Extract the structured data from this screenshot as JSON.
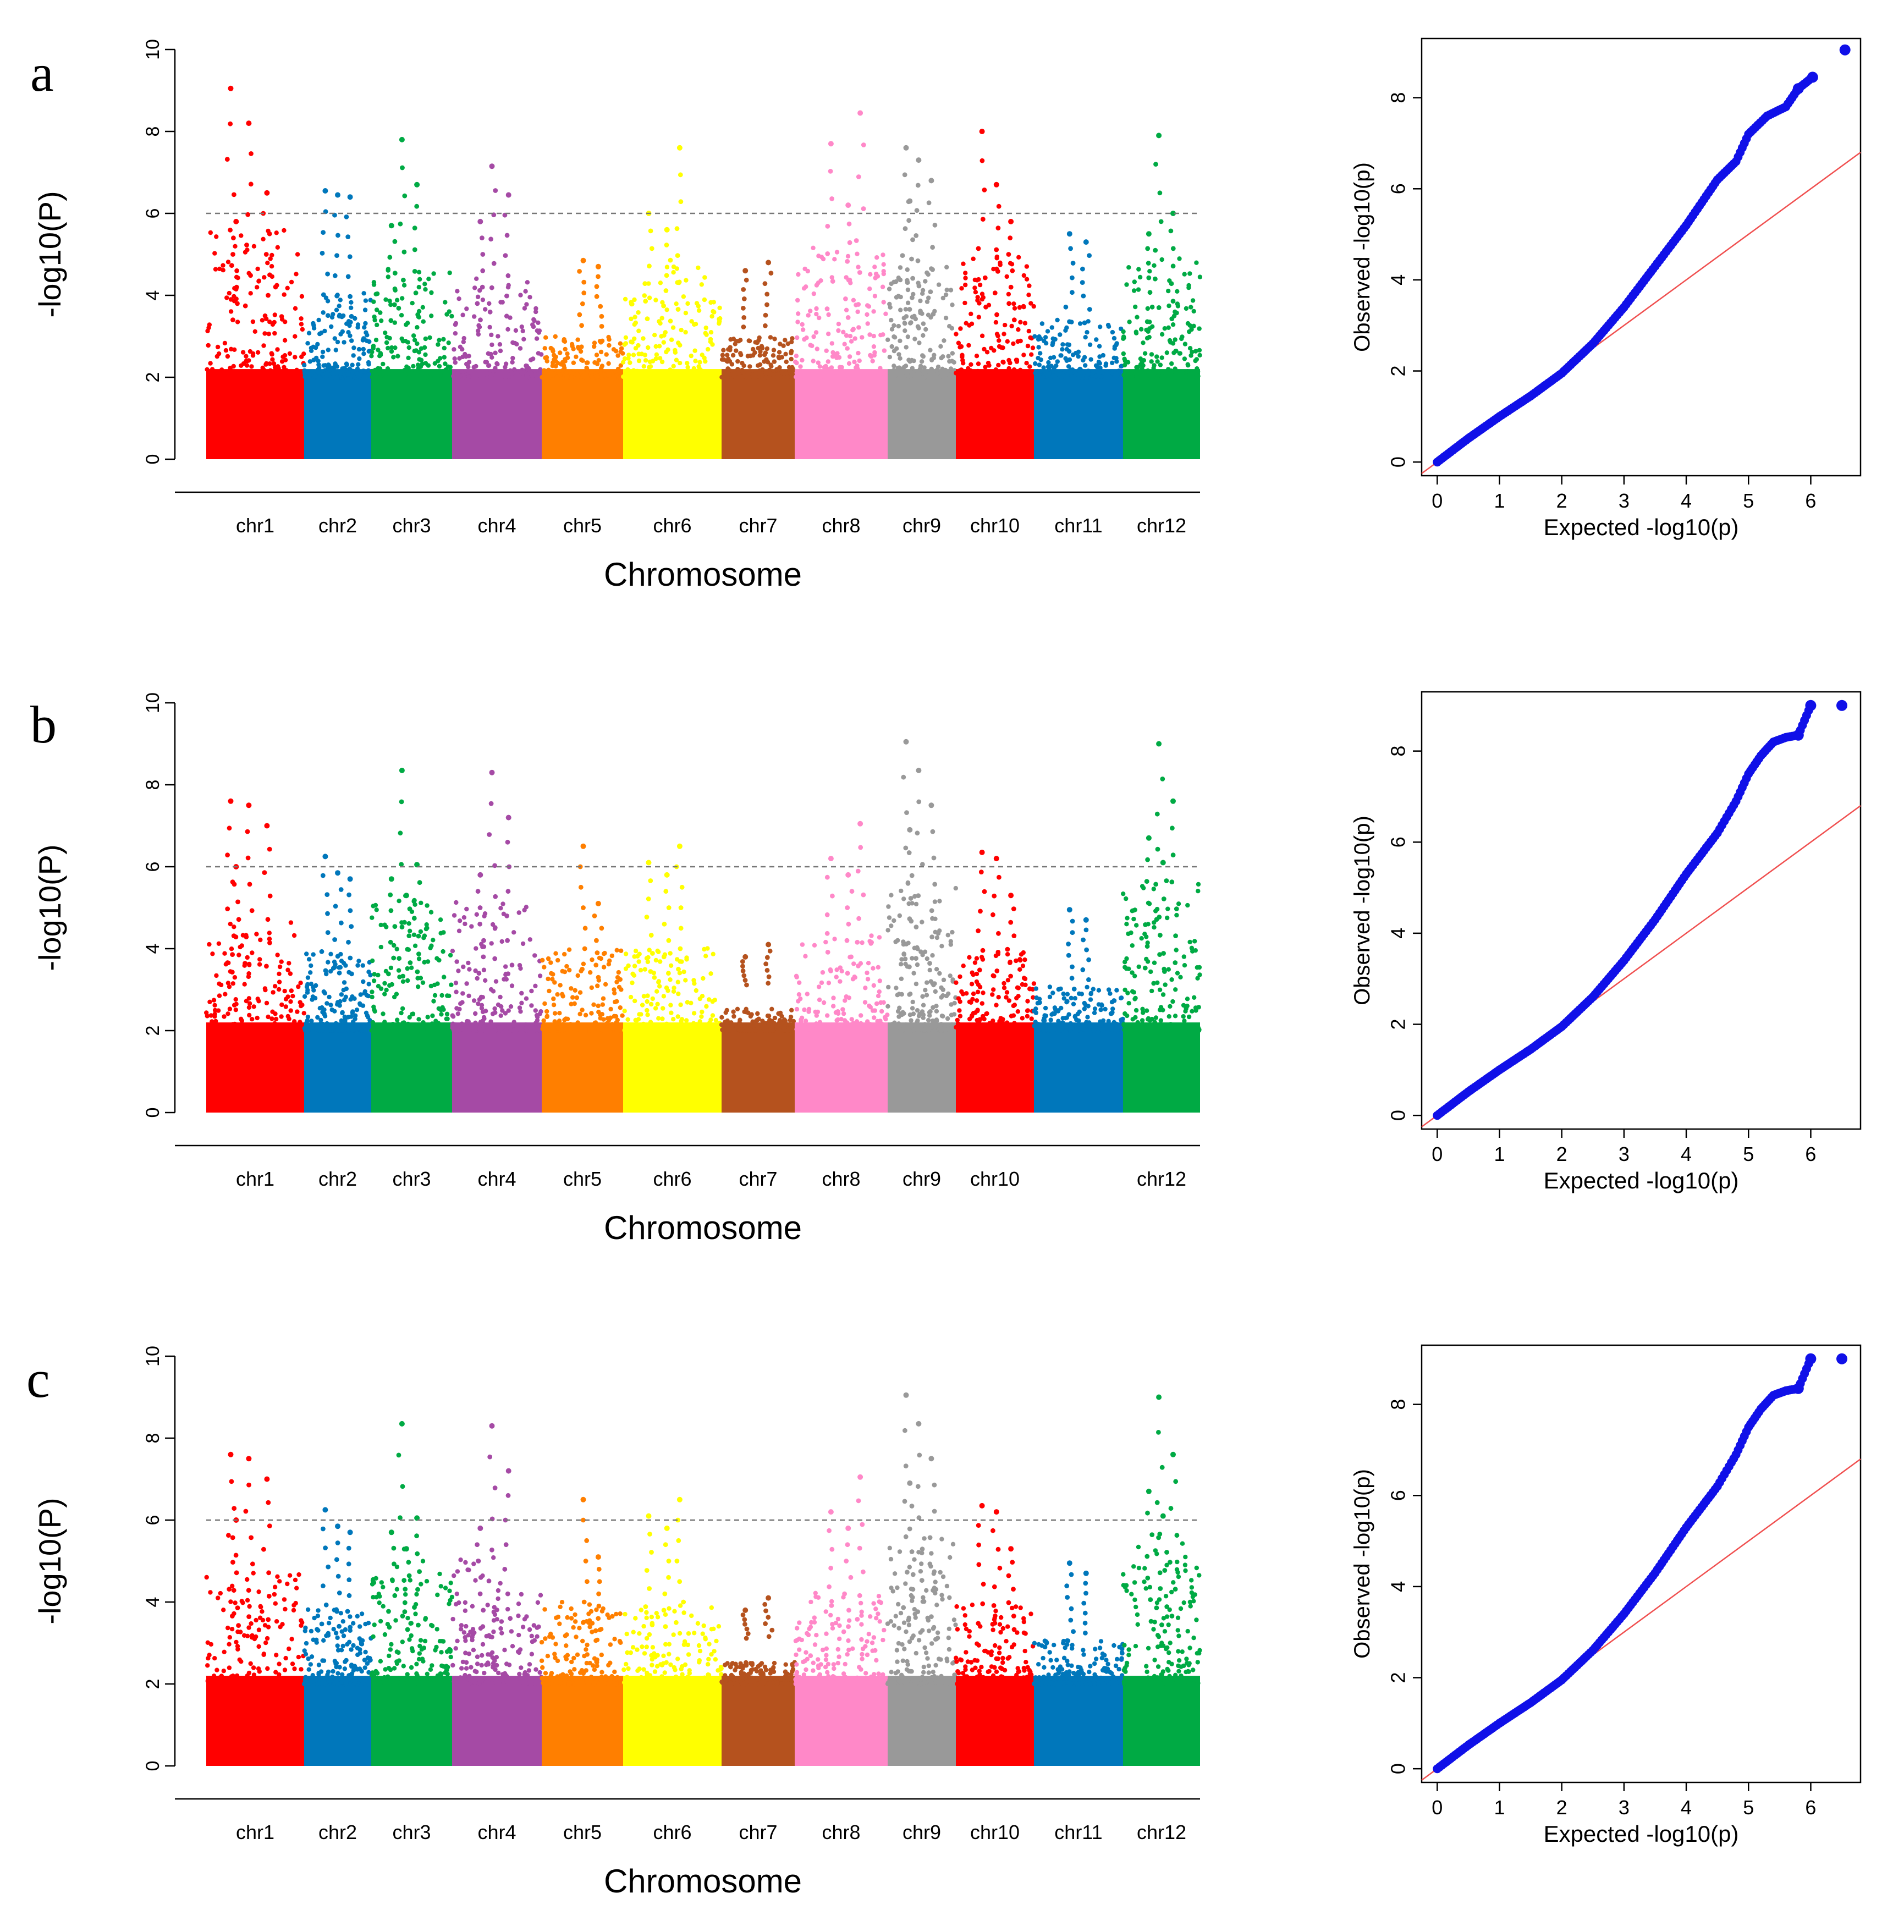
{
  "figure": {
    "panels": [
      "a",
      "b",
      "c"
    ]
  },
  "chart_data": [
    {
      "panel": "a",
      "type": "scatter",
      "subtype": "manhattan",
      "xlabel": "Chromosome",
      "ylabel": "-log10(P)",
      "ylim": [
        0,
        10
      ],
      "yticks": [
        0,
        2,
        4,
        6,
        8,
        10
      ],
      "threshold": 6,
      "chromosomes": [
        {
          "label": "chr1",
          "color": "#FF0000",
          "max": 9.05,
          "peaks": [
            9.05,
            8.2,
            6.5,
            5.8
          ]
        },
        {
          "label": "chr2",
          "color": "#0077BB",
          "max": 6.55,
          "peaks": [
            6.55,
            6.45,
            6.4
          ]
        },
        {
          "label": "chr3",
          "color": "#00AA44",
          "max": 7.8,
          "peaks": [
            7.8,
            6.7,
            5.7
          ]
        },
        {
          "label": "chr4",
          "color": "#A54AA5",
          "max": 7.15,
          "peaks": [
            7.15,
            6.45,
            5.8
          ]
        },
        {
          "label": "chr5",
          "color": "#FF7F00",
          "max": 4.85,
          "peaks": [
            4.85,
            4.7
          ]
        },
        {
          "label": "chr6",
          "color": "#FFFF00",
          "max": 7.6,
          "peaks": [
            7.6,
            6.0,
            5.6
          ]
        },
        {
          "label": "chr7",
          "color": "#B5521E",
          "max": 4.8,
          "peaks": [
            4.8,
            4.6
          ]
        },
        {
          "label": "chr8",
          "color": "#FF88C8",
          "max": 8.45,
          "peaks": [
            8.45,
            7.7,
            6.2
          ]
        },
        {
          "label": "chr9",
          "color": "#999999",
          "max": 7.6,
          "peaks": [
            7.6,
            7.3,
            6.8,
            6.3
          ]
        },
        {
          "label": "chr10",
          "color": "#FF0000",
          "max": 8.0,
          "peaks": [
            8.0,
            6.7,
            5.8
          ]
        },
        {
          "label": "chr11",
          "color": "#0077BB",
          "max": 5.5,
          "peaks": [
            5.5,
            5.3
          ]
        },
        {
          "label": "chr12",
          "color": "#00AA44",
          "max": 7.9,
          "peaks": [
            7.9,
            6.0,
            5.5
          ]
        }
      ]
    },
    {
      "panel": "a",
      "type": "scatter",
      "subtype": "qq",
      "xlabel": "Expected -log10(p)",
      "ylabel": "Observed -log10(p)",
      "xticks": [
        0,
        1,
        2,
        3,
        4,
        5,
        6
      ],
      "yticks": [
        0,
        2,
        4,
        6,
        8
      ],
      "xlim": [
        -0.25,
        6.8
      ],
      "ylim": [
        -0.3,
        9.3
      ],
      "points": [
        [
          0,
          0
        ],
        [
          0.5,
          0.52
        ],
        [
          1,
          1.0
        ],
        [
          1.5,
          1.45
        ],
        [
          2,
          1.95
        ],
        [
          2.5,
          2.6
        ],
        [
          3,
          3.4
        ],
        [
          3.5,
          4.3
        ],
        [
          4,
          5.2
        ],
        [
          4.5,
          6.2
        ],
        [
          4.8,
          6.6
        ],
        [
          5.0,
          7.2
        ],
        [
          5.3,
          7.6
        ],
        [
          5.6,
          7.8
        ],
        [
          5.8,
          8.2
        ],
        [
          6.03,
          8.45
        ],
        [
          6.55,
          9.05
        ]
      ],
      "diagonal": true
    },
    {
      "panel": "b",
      "type": "scatter",
      "subtype": "manhattan",
      "xlabel": "Chromosome",
      "ylabel": "-log10(P)",
      "ylim": [
        0,
        10
      ],
      "yticks": [
        0,
        2,
        4,
        6,
        8,
        10
      ],
      "threshold": 6,
      "chromosomes": [
        {
          "label": "chr1",
          "color": "#FF0000",
          "max": 7.6,
          "peaks": [
            7.6,
            7.5,
            7.0,
            6.0
          ]
        },
        {
          "label": "chr2",
          "color": "#0077BB",
          "max": 6.25,
          "peaks": [
            6.25,
            5.85,
            5.7
          ]
        },
        {
          "label": "chr3",
          "color": "#00AA44",
          "max": 8.35,
          "peaks": [
            8.35,
            6.05,
            5.7,
            5.3
          ]
        },
        {
          "label": "chr4",
          "color": "#A54AA5",
          "max": 8.3,
          "peaks": [
            8.3,
            7.2,
            5.8
          ]
        },
        {
          "label": "chr5",
          "color": "#FF7F00",
          "max": 6.5,
          "peaks": [
            6.5,
            5.1
          ]
        },
        {
          "label": "chr6",
          "color": "#FFFF00",
          "max": 6.5,
          "peaks": [
            6.5,
            6.1,
            5.8
          ]
        },
        {
          "label": "chr7",
          "color": "#B5521E",
          "max": 4.1,
          "peaks": [
            4.1,
            3.8
          ]
        },
        {
          "label": "chr8",
          "color": "#FF88C8",
          "max": 7.05,
          "peaks": [
            7.05,
            6.2,
            5.8
          ]
        },
        {
          "label": "chr9",
          "color": "#999999",
          "max": 9.05,
          "peaks": [
            9.05,
            8.35,
            7.5,
            6.9
          ]
        },
        {
          "label": "chr10",
          "color": "#FF0000",
          "max": 6.35,
          "peaks": [
            6.35,
            6.2,
            5.3
          ]
        },
        {
          "label": "",
          "color": "#0077BB",
          "max": 4.95,
          "peaks": [
            4.95,
            4.7
          ]
        },
        {
          "label": "chr12",
          "color": "#00AA44",
          "max": 9.0,
          "peaks": [
            9.0,
            7.6,
            6.7,
            6.1
          ]
        }
      ]
    },
    {
      "panel": "b",
      "type": "scatter",
      "subtype": "qq",
      "xlabel": "Expected -log10(p)",
      "ylabel": "Observed -log10(p)",
      "xticks": [
        0,
        1,
        2,
        3,
        4,
        5,
        6
      ],
      "yticks": [
        0,
        2,
        4,
        6,
        8
      ],
      "xlim": [
        -0.25,
        6.8
      ],
      "ylim": [
        -0.3,
        9.3
      ],
      "points": [
        [
          0,
          0
        ],
        [
          0.5,
          0.52
        ],
        [
          1,
          1.0
        ],
        [
          1.5,
          1.45
        ],
        [
          2,
          1.95
        ],
        [
          2.5,
          2.6
        ],
        [
          3,
          3.4
        ],
        [
          3.5,
          4.3
        ],
        [
          4,
          5.3
        ],
        [
          4.5,
          6.2
        ],
        [
          4.8,
          6.9
        ],
        [
          5.0,
          7.5
        ],
        [
          5.2,
          7.9
        ],
        [
          5.4,
          8.2
        ],
        [
          5.6,
          8.3
        ],
        [
          5.8,
          8.35
        ],
        [
          6.0,
          9.0
        ],
        [
          6.5,
          9.0
        ]
      ],
      "diagonal": true
    },
    {
      "panel": "c",
      "type": "scatter",
      "subtype": "manhattan",
      "xlabel": "Chromosome",
      "ylabel": "-log10(P)",
      "ylim": [
        0,
        10
      ],
      "yticks": [
        0,
        2,
        4,
        6,
        8,
        10
      ],
      "threshold": 6,
      "chromosomes": [
        {
          "label": "chr1",
          "color": "#FF0000",
          "max": 7.6,
          "peaks": [
            7.6,
            7.5,
            7.0,
            6.0
          ]
        },
        {
          "label": "chr2",
          "color": "#0077BB",
          "max": 6.25,
          "peaks": [
            6.25,
            5.85,
            5.7
          ]
        },
        {
          "label": "chr3",
          "color": "#00AA44",
          "max": 8.35,
          "peaks": [
            8.35,
            6.05,
            5.7,
            5.3
          ]
        },
        {
          "label": "chr4",
          "color": "#A54AA5",
          "max": 8.3,
          "peaks": [
            8.3,
            7.2,
            5.8
          ]
        },
        {
          "label": "chr5",
          "color": "#FF7F00",
          "max": 6.5,
          "peaks": [
            6.5,
            5.1
          ]
        },
        {
          "label": "chr6",
          "color": "#FFFF00",
          "max": 6.5,
          "peaks": [
            6.5,
            6.1,
            5.8
          ]
        },
        {
          "label": "chr7",
          "color": "#B5521E",
          "max": 4.1,
          "peaks": [
            4.1,
            3.8
          ]
        },
        {
          "label": "chr8",
          "color": "#FF88C8",
          "max": 7.05,
          "peaks": [
            7.05,
            6.2,
            5.8
          ]
        },
        {
          "label": "chr9",
          "color": "#999999",
          "max": 9.05,
          "peaks": [
            9.05,
            8.35,
            7.5,
            6.9
          ]
        },
        {
          "label": "chr10",
          "color": "#FF0000",
          "max": 6.35,
          "peaks": [
            6.35,
            6.2,
            5.3
          ]
        },
        {
          "label": "chr11",
          "color": "#0077BB",
          "max": 4.95,
          "peaks": [
            4.95,
            4.7
          ]
        },
        {
          "label": "chr12",
          "color": "#00AA44",
          "max": 9.0,
          "peaks": [
            9.0,
            7.6,
            6.7,
            6.1
          ]
        }
      ]
    },
    {
      "panel": "c",
      "type": "scatter",
      "subtype": "qq",
      "xlabel": "Expected -log10(p)",
      "ylabel": "Observed -log10(p)",
      "xticks": [
        0,
        1,
        2,
        3,
        4,
        5,
        6
      ],
      "yticks": [
        0,
        2,
        4,
        6,
        8
      ],
      "xlim": [
        -0.25,
        6.8
      ],
      "ylim": [
        -0.3,
        9.3
      ],
      "points": [
        [
          0,
          0
        ],
        [
          0.5,
          0.52
        ],
        [
          1,
          1.0
        ],
        [
          1.5,
          1.45
        ],
        [
          2,
          1.95
        ],
        [
          2.5,
          2.6
        ],
        [
          3,
          3.4
        ],
        [
          3.5,
          4.3
        ],
        [
          4,
          5.3
        ],
        [
          4.5,
          6.2
        ],
        [
          4.8,
          6.9
        ],
        [
          5.0,
          7.5
        ],
        [
          5.2,
          7.9
        ],
        [
          5.4,
          8.2
        ],
        [
          5.6,
          8.3
        ],
        [
          5.8,
          8.35
        ],
        [
          6.0,
          9.0
        ],
        [
          6.5,
          9.0
        ]
      ],
      "diagonal": true
    }
  ]
}
